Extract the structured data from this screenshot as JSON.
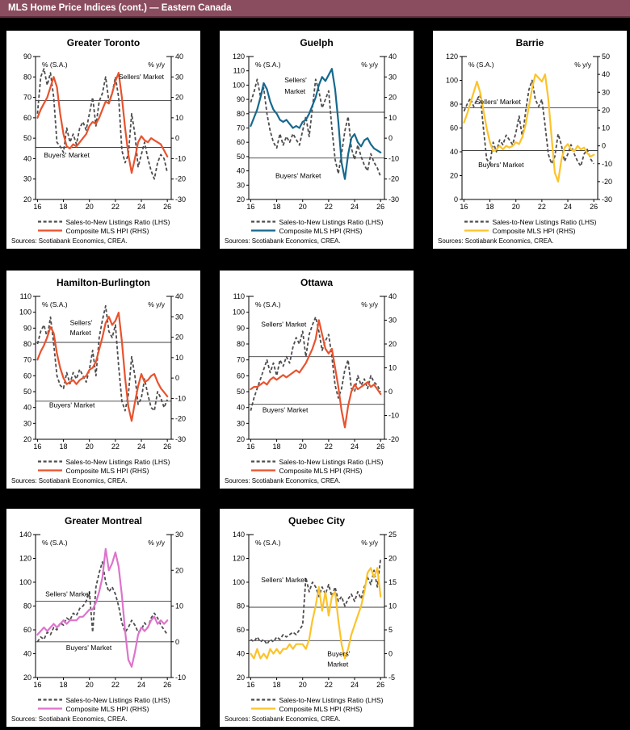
{
  "header": {
    "title": "MLS Home Price Indices (cont.) — Eastern Canada",
    "bg": "#8A4D5F"
  },
  "legend": {
    "snlr_label": "Sales-to-New Listings Ratio (LHS)",
    "hpi_label": "Composite MLS HPI (RHS)"
  },
  "sources_note": "Sources: Scotiabank Economics, CREA.",
  "colors": {
    "snlr_line": "#4D4D4D",
    "threshold_line": "#3F3F3F",
    "axis": "#000000"
  },
  "chart_data": {
    "type": "line",
    "x": {
      "start": 16,
      "step": 0.25,
      "count": 41,
      "unit": "year (20xx)"
    },
    "x_ticks": [
      16,
      18,
      20,
      22,
      24,
      26
    ],
    "x_range": [
      15.85,
      26.3
    ],
    "series_names": [
      "Sales-to-New Listings Ratio (LHS)",
      "Composite MLS HPI (RHS)"
    ],
    "charts": [
      {
        "title": "Greater Toronto",
        "color": "#E8532E",
        "left_axis_label": "% (S.A.)",
        "right_axis_label": "% y/y",
        "left_min": 20,
        "left_max": 90,
        "left_tick_step": 10,
        "right_min": -30,
        "right_max": 40,
        "right_tick_step": 10,
        "sellers_threshold": 68.5,
        "buyers_threshold": 45.5,
        "market_labels": [
          {
            "text": "Sellers' Market",
            "x": 24.0,
            "y": 79,
            "anchor": "middle"
          },
          {
            "text": "Buyers' Market",
            "x": 16.5,
            "y": 40.5,
            "anchor": "start"
          }
        ],
        "snlr": [
          62,
          80,
          84,
          76,
          82,
          70,
          48,
          46,
          43,
          55,
          48,
          52,
          47,
          55,
          58,
          54,
          62,
          70,
          56,
          68,
          72,
          80,
          68,
          72,
          80,
          70,
          44,
          38,
          42,
          62,
          52,
          36,
          42,
          48,
          40,
          34,
          30,
          38,
          42,
          40,
          33
        ],
        "hpi": [
          10,
          14,
          17,
          20,
          25,
          30,
          25,
          12,
          2,
          -4,
          -5,
          -3,
          -4,
          -2,
          0,
          2,
          6,
          8,
          7,
          10,
          14,
          18,
          17,
          22,
          28,
          32,
          20,
          5,
          -8,
          -17,
          -10,
          -2,
          1,
          -1,
          -2,
          0,
          -1,
          -2,
          -3,
          -6,
          -9
        ]
      },
      {
        "title": "Guelph",
        "color": "#16698E",
        "left_axis_label": "% (S.A.)",
        "right_axis_label": "% y/y",
        "left_min": 20,
        "left_max": 120,
        "left_tick_step": 10,
        "right_min": -30,
        "right_max": 40,
        "right_tick_step": 10,
        "sellers_threshold": 81,
        "buyers_threshold": 49,
        "market_labels": [
          {
            "text": "Sellers'",
            "x": 18.6,
            "y": 102,
            "anchor": "start"
          },
          {
            "text": "Market",
            "x": 18.6,
            "y": 94,
            "anchor": "start"
          },
          {
            "text": "Buyers' Market",
            "x": 17.9,
            "y": 35,
            "anchor": "start"
          }
        ],
        "snlr": [
          88,
          95,
          104,
          92,
          98,
          80,
          68,
          60,
          56,
          66,
          58,
          64,
          60,
          66,
          62,
          58,
          68,
          78,
          64,
          84,
          104,
          96,
          84,
          90,
          96,
          70,
          48,
          38,
          52,
          68,
          78,
          56,
          48,
          58,
          50,
          44,
          40,
          52,
          46,
          42,
          36
        ],
        "hpi": [
          6,
          10,
          14,
          20,
          27,
          24,
          18,
          14,
          12,
          9,
          8,
          9,
          7,
          5,
          6,
          5,
          8,
          9,
          12,
          16,
          20,
          26,
          30,
          28,
          31,
          34,
          24,
          8,
          -12,
          -20,
          -8,
          0,
          2,
          -2,
          -4,
          -1,
          0,
          -3,
          -5,
          -6,
          -7
        ]
      },
      {
        "title": "Barrie",
        "color": "#FCC32B",
        "left_axis_label": "% (S.A.)",
        "right_axis_label": "% y/y",
        "left_min": 0,
        "left_max": 120,
        "left_tick_step": 20,
        "right_min": -30,
        "right_max": 50,
        "right_tick_step": 10,
        "sellers_threshold": 77,
        "buyers_threshold": 41,
        "market_labels": [
          {
            "text": "Sellers' Market",
            "x": 16.9,
            "y": 80,
            "anchor": "start"
          },
          {
            "text": "Buyers' Market",
            "x": 17.1,
            "y": 27,
            "anchor": "start"
          }
        ],
        "snlr": [
          74,
          80,
          85,
          78,
          84,
          88,
          60,
          34,
          30,
          48,
          40,
          50,
          46,
          54,
          50,
          46,
          56,
          70,
          52,
          74,
          92,
          100,
          84,
          78,
          84,
          62,
          38,
          30,
          36,
          55,
          46,
          32,
          38,
          46,
          38,
          32,
          28,
          38,
          42,
          34,
          30
        ],
        "hpi": [
          13,
          18,
          24,
          30,
          36,
          30,
          20,
          10,
          2,
          -3,
          -2,
          0,
          -2,
          0,
          -1,
          0,
          2,
          1,
          5,
          12,
          22,
          32,
          40,
          38,
          36,
          40,
          26,
          5,
          -15,
          -20,
          -8,
          -1,
          1,
          -2,
          -3,
          0,
          -2,
          -1,
          -4,
          -6,
          -5
        ]
      },
      {
        "title": "Hamilton-Burlington",
        "color": "#E8532E",
        "left_axis_label": "% (S.A.)",
        "right_axis_label": "% y/y",
        "left_min": 20,
        "left_max": 110,
        "left_tick_step": 10,
        "right_min": -30,
        "right_max": 40,
        "right_tick_step": 10,
        "sellers_threshold": 81,
        "buyers_threshold": 44,
        "market_labels": [
          {
            "text": "Sellers'",
            "x": 18.5,
            "y": 92,
            "anchor": "start"
          },
          {
            "text": "Market",
            "x": 18.5,
            "y": 85.5,
            "anchor": "start"
          },
          {
            "text": "Buyers' Market",
            "x": 16.9,
            "y": 40,
            "anchor": "start"
          }
        ],
        "snlr": [
          80,
          88,
          92,
          84,
          97,
          80,
          60,
          54,
          52,
          62,
          55,
          62,
          58,
          64,
          60,
          56,
          64,
          76,
          60,
          84,
          95,
          104,
          88,
          84,
          92,
          66,
          44,
          38,
          48,
          72,
          60,
          42,
          46,
          58,
          48,
          40,
          38,
          50,
          46,
          40,
          45
        ],
        "hpi": [
          9,
          13,
          16,
          20,
          25,
          22,
          12,
          5,
          0,
          -3,
          -2,
          -1,
          -3,
          -1,
          0,
          1,
          4,
          5,
          8,
          14,
          20,
          27,
          30,
          26,
          28,
          32,
          18,
          0,
          -14,
          -21,
          -12,
          -4,
          2,
          -2,
          -1,
          1,
          2,
          -2,
          -5,
          -7,
          -9
        ]
      },
      {
        "title": "Ottawa",
        "color": "#E8532E",
        "left_axis_label": "% (S.A.)",
        "right_axis_label": "% y/y",
        "left_min": 20,
        "left_max": 110,
        "left_tick_step": 10,
        "right_min": -20,
        "right_max": 40,
        "right_tick_step": 10,
        "sellers_threshold": 72,
        "buyers_threshold": 42,
        "market_labels": [
          {
            "text": "Sellers' Market",
            "x": 16.8,
            "y": 91,
            "anchor": "start"
          },
          {
            "text": "Buyers' Market",
            "x": 16.9,
            "y": 37,
            "anchor": "start"
          }
        ],
        "snlr": [
          38,
          46,
          52,
          58,
          64,
          70,
          62,
          68,
          60,
          70,
          66,
          72,
          68,
          78,
          84,
          80,
          88,
          72,
          86,
          92,
          97,
          88,
          76,
          82,
          86,
          72,
          54,
          46,
          52,
          64,
          70,
          52,
          50,
          60,
          54,
          58,
          52,
          60,
          56,
          54,
          50
        ],
        "hpi": [
          1,
          2,
          2,
          3,
          4,
          3,
          5,
          6,
          5,
          6,
          7,
          6,
          7,
          8,
          9,
          8,
          10,
          12,
          15,
          18,
          22,
          30,
          24,
          18,
          16,
          18,
          10,
          2,
          -8,
          -15,
          -6,
          0,
          3,
          1,
          2,
          3,
          4,
          2,
          3,
          1,
          -1
        ]
      },
      {
        "title": "Greater Montreal",
        "color": "#DD74CC",
        "left_axis_label": "% (S.A.)",
        "right_axis_label": "% y/y",
        "left_min": 20,
        "left_max": 140,
        "left_tick_step": 20,
        "right_min": -10,
        "right_max": 30,
        "right_tick_step": 10,
        "sellers_threshold": 84,
        "buyers_threshold": 50,
        "market_labels": [
          {
            "text": "Sellers' Market",
            "x": 16.6,
            "y": 88,
            "anchor": "start"
          },
          {
            "text": "Buyers' Market",
            "x": 18.2,
            "y": 43,
            "anchor": "start"
          }
        ],
        "snlr": [
          50,
          54,
          52,
          58,
          56,
          62,
          60,
          66,
          64,
          70,
          68,
          74,
          72,
          78,
          80,
          84,
          92,
          58,
          96,
          108,
          117,
          100,
          92,
          96,
          90,
          80,
          66,
          58,
          62,
          68,
          64,
          58,
          60,
          66,
          62,
          70,
          74,
          70,
          64,
          60,
          56
        ],
        "hpi": [
          2,
          3,
          4,
          3,
          4,
          5,
          4,
          5,
          6,
          5,
          6,
          6,
          6,
          7,
          7,
          8,
          9,
          9,
          11,
          14,
          18,
          26,
          20,
          22,
          25,
          21,
          13,
          3,
          -5,
          -7,
          -3,
          2,
          4,
          3,
          4,
          6,
          7,
          5,
          6,
          5,
          6
        ]
      },
      {
        "title": "Quebec City",
        "color": "#FCC32B",
        "left_axis_label": "% (S.A.)",
        "right_axis_label": "% y/y",
        "left_min": 20,
        "left_max": 140,
        "left_tick_step": 20,
        "right_min": -5,
        "right_max": 25,
        "right_tick_step": 5,
        "sellers_threshold": 79,
        "buyers_threshold": 51,
        "market_labels": [
          {
            "text": "Sellers' Market",
            "x": 16.8,
            "y": 100,
            "anchor": "start"
          },
          {
            "text": "Buyers'",
            "x": 21.9,
            "y": 38,
            "anchor": "start"
          },
          {
            "text": "Market",
            "x": 21.9,
            "y": 29,
            "anchor": "start"
          }
        ],
        "snlr": [
          52,
          50,
          54,
          50,
          52,
          48,
          52,
          50,
          54,
          52,
          56,
          54,
          56,
          58,
          56,
          60,
          64,
          104,
          92,
          100,
          96,
          88,
          96,
          90,
          98,
          88,
          96,
          84,
          88,
          80,
          86,
          90,
          84,
          92,
          86,
          96,
          104,
          98,
          110,
          96,
          120
        ],
        "hpi": [
          0,
          -1,
          1,
          -1,
          0,
          -1,
          1,
          0,
          1,
          0,
          1,
          1,
          2,
          1,
          2,
          2,
          2,
          1,
          3,
          7,
          10,
          14,
          9,
          13,
          8,
          12,
          13,
          7,
          2,
          -1,
          1,
          4,
          6,
          8,
          10,
          13,
          17,
          18,
          16,
          18,
          12
        ]
      }
    ]
  }
}
